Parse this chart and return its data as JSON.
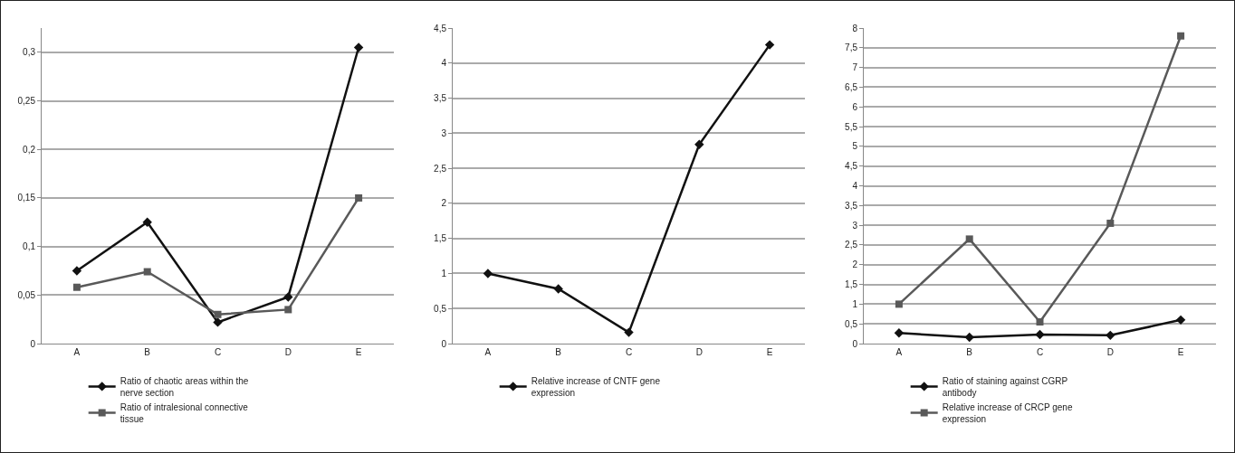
{
  "chart_data": [
    {
      "type": "line",
      "categories": [
        "A",
        "B",
        "C",
        "D",
        "E"
      ],
      "ylim": [
        0,
        0.325
      ],
      "yticks": [
        0,
        {
          "value": 0.05,
          "label": "0,05"
        },
        {
          "value": 0.1,
          "label": "0,1"
        },
        {
          "value": 0.15,
          "label": "0,15"
        },
        {
          "value": 0.2,
          "label": "0,2"
        },
        {
          "value": 0.25,
          "label": "0,25"
        },
        {
          "value": 0.3,
          "label": "0,3"
        }
      ],
      "grid": "y",
      "legend": "bottom",
      "line_style": "solid",
      "series": [
        {
          "name": "Ratio of chaotic areas within the nerve section",
          "color": "#111111",
          "marker": "diamond",
          "values": [
            0.075,
            0.125,
            0.022,
            0.048,
            0.305
          ]
        },
        {
          "name": "Ratio of intralesional connective tissue",
          "color": "#595959",
          "marker": "square",
          "values": [
            0.058,
            0.074,
            0.03,
            0.035,
            0.15
          ]
        }
      ]
    },
    {
      "type": "line",
      "categories": [
        "A",
        "B",
        "C",
        "D",
        "E"
      ],
      "ylim": [
        0,
        4.5
      ],
      "yticks": [
        0,
        {
          "value": 0.5,
          "label": "0,5"
        },
        1,
        {
          "value": 1.5,
          "label": "1,5"
        },
        2,
        {
          "value": 2.5,
          "label": "2,5"
        },
        3,
        {
          "value": 3.5,
          "label": "3,5"
        },
        4,
        {
          "value": 4.5,
          "label": "4,5"
        }
      ],
      "grid": "y",
      "legend": "bottom",
      "line_style": "solid",
      "series": [
        {
          "name": "Relative increase of CNTF gene expression",
          "color": "#111111",
          "marker": "diamond",
          "values": [
            1.0,
            0.78,
            0.16,
            2.84,
            4.26
          ]
        }
      ]
    },
    {
      "type": "line",
      "categories": [
        "A",
        "B",
        "C",
        "D",
        "E"
      ],
      "ylim": [
        0,
        8
      ],
      "yticks": [
        0,
        {
          "value": 0.5,
          "label": "0,5"
        },
        1,
        {
          "value": 1.5,
          "label": "1,5"
        },
        2,
        {
          "value": 2.5,
          "label": "2,5"
        },
        3,
        {
          "value": 3.5,
          "label": "3,5"
        },
        4,
        {
          "value": 4.5,
          "label": "4,5"
        },
        5,
        {
          "value": 5.5,
          "label": "5,5"
        },
        6,
        {
          "value": 6.5,
          "label": "6,5"
        },
        7,
        {
          "value": 7.5,
          "label": "7,5"
        },
        8
      ],
      "grid": "y",
      "legend": "bottom",
      "line_style": "solid",
      "series": [
        {
          "name": "Ratio of staining against CGRP antibody",
          "color": "#111111",
          "marker": "diamond",
          "values": [
            0.27,
            0.16,
            0.23,
            0.21,
            0.6
          ]
        },
        {
          "name": "Relative increase of CRCP gene expression",
          "color": "#595959",
          "marker": "square",
          "values": [
            1.0,
            2.65,
            0.55,
            3.05,
            7.8
          ]
        }
      ]
    }
  ]
}
